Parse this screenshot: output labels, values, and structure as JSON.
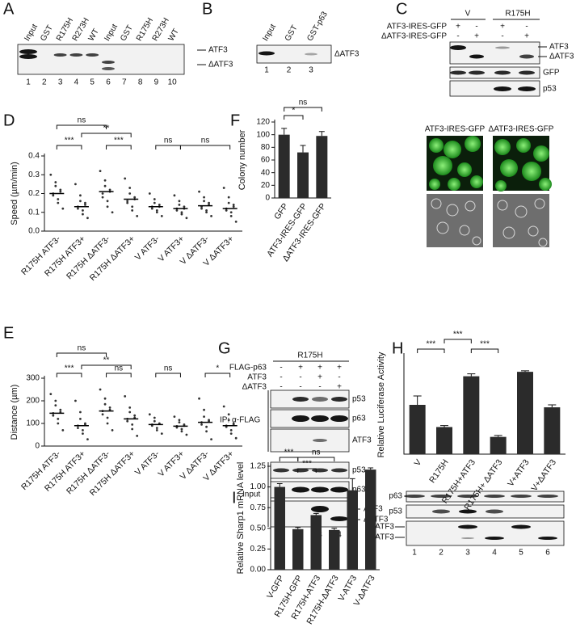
{
  "panels": {
    "A": {
      "letter": "A",
      "lanes": [
        "Input",
        "GST",
        "R175H",
        "R273H",
        "WT",
        "Input",
        "GST",
        "R175H",
        "R273H",
        "WT"
      ],
      "lane_numbers": [
        1,
        2,
        3,
        4,
        5,
        6,
        7,
        8,
        9,
        10
      ],
      "bands": [
        "ATF3",
        "ΔATF3"
      ]
    },
    "B": {
      "letter": "B",
      "lanes": [
        "Input",
        "GST",
        "GST-p63"
      ],
      "lane_numbers": [
        1,
        2,
        3
      ],
      "bands": [
        "ΔATF3"
      ]
    },
    "C": {
      "letter": "C",
      "groups": [
        "V",
        "R175H"
      ],
      "rows": [
        {
          "label": "ATF3-IRES-GFP",
          "signs": [
            "+",
            "-",
            "+",
            "-"
          ]
        },
        {
          "label": "ΔATF3-IRES-GFP",
          "signs": [
            "-",
            "+",
            "-",
            "+"
          ]
        }
      ],
      "bands": [
        "ATF3",
        "ΔATF3",
        "GFP",
        "p53"
      ]
    },
    "images": {
      "labels": [
        "ATF3-IRES-GFP",
        "ΔATF3-IRES-GFP"
      ]
    },
    "G": {
      "letter": "G",
      "group": "R175H",
      "rows": [
        {
          "label": "FLAG-p63",
          "signs": [
            "-",
            "+",
            "+",
            "+"
          ]
        },
        {
          "label": "ATF3",
          "signs": [
            "-",
            "-",
            "+",
            "-"
          ]
        },
        {
          "label": "ΔATF3",
          "signs": [
            "-",
            "-",
            "-",
            "+"
          ]
        }
      ],
      "ip_label": "IP: α-FLAG",
      "ip_bands": [
        "p53",
        "p63",
        "ATF3"
      ],
      "input_label": "Input",
      "input_bands": [
        "p53",
        "p63",
        "ATF3",
        "ΔATF3"
      ],
      "lane_numbers": [
        1,
        2,
        3,
        4
      ]
    },
    "H_blot": {
      "bands": [
        "p63",
        "p53",
        "ATF3",
        "ΔATF3"
      ],
      "lane_numbers": [
        1,
        2,
        3,
        4,
        5,
        6
      ]
    }
  },
  "chart_data": [
    {
      "type": "dotplot",
      "letter": "D",
      "ylabel": "Speed (µm/min)",
      "categories": [
        "R175H ATF3-",
        "R175H ATF3+",
        "R175H ΔATF3-",
        "R175H ΔATF3+",
        "V ATF3-",
        "V ATF3+",
        "V ΔATF3-",
        "V ΔATF3+"
      ],
      "groups": [
        [
          0.3,
          0.26,
          0.24,
          0.22,
          0.21,
          0.2,
          0.19,
          0.17,
          0.15,
          0.12
        ],
        [
          0.25,
          0.19,
          0.16,
          0.15,
          0.14,
          0.13,
          0.12,
          0.11,
          0.09,
          0.07
        ],
        [
          0.32,
          0.27,
          0.24,
          0.22,
          0.21,
          0.2,
          0.18,
          0.16,
          0.13,
          0.1
        ],
        [
          0.28,
          0.23,
          0.2,
          0.18,
          0.17,
          0.16,
          0.15,
          0.13,
          0.11,
          0.08
        ],
        [
          0.2,
          0.17,
          0.15,
          0.14,
          0.13,
          0.13,
          0.12,
          0.11,
          0.1,
          0.08
        ],
        [
          0.19,
          0.16,
          0.14,
          0.13,
          0.12,
          0.12,
          0.11,
          0.1,
          0.09,
          0.07
        ],
        [
          0.21,
          0.18,
          0.16,
          0.15,
          0.14,
          0.13,
          0.12,
          0.11,
          0.1,
          0.08
        ],
        [
          0.23,
          0.18,
          0.15,
          0.14,
          0.13,
          0.12,
          0.11,
          0.1,
          0.08,
          0.05
        ]
      ],
      "medians": [
        0.2,
        0.13,
        0.21,
        0.17,
        0.13,
        0.12,
        0.135,
        0.12
      ],
      "ylim": [
        0,
        0.4
      ],
      "yticks": [
        {
          "value": 0,
          "label": "0.0"
        },
        0.1,
        0.2,
        0.3,
        0.4
      ],
      "annotations": [
        "ns",
        "**",
        "***",
        "***",
        "ns",
        "ns"
      ],
      "color": "#333333"
    },
    {
      "type": "dotplot",
      "letter": "E",
      "ylabel": "Distance (µm)",
      "categories": [
        "R175H ATF3-",
        "R175H ATF3+",
        "R175H ΔATF3-",
        "R175H ΔATF3+",
        "V ATF3-",
        "V ATF3+",
        "V ΔATF3-",
        "V ΔATF3+"
      ],
      "groups": [
        [
          230,
          200,
          180,
          160,
          150,
          145,
          135,
          120,
          100,
          70
        ],
        [
          200,
          150,
          120,
          100,
          95,
          90,
          80,
          70,
          55,
          30
        ],
        [
          250,
          210,
          185,
          170,
          160,
          155,
          140,
          125,
          100,
          70
        ],
        [
          220,
          170,
          150,
          135,
          125,
          120,
          110,
          95,
          75,
          45
        ],
        [
          140,
          125,
          110,
          100,
          98,
          95,
          90,
          80,
          70,
          55
        ],
        [
          130,
          115,
          105,
          95,
          90,
          88,
          82,
          75,
          65,
          50
        ],
        [
          210,
          160,
          130,
          115,
          110,
          105,
          95,
          85,
          65,
          30
        ],
        [
          175,
          140,
          115,
          100,
          95,
          90,
          85,
          70,
          55,
          35
        ]
      ],
      "medians": [
        145,
        90,
        155,
        120,
        95,
        88,
        105,
        90
      ],
      "ylim": [
        0,
        300
      ],
      "yticks": [
        0,
        100,
        200,
        300
      ],
      "annotations": [
        "ns",
        "**",
        "***",
        "ns",
        "ns",
        "*"
      ],
      "color": "#333333"
    },
    {
      "type": "bar",
      "letter": "F",
      "ylabel": "Colony number",
      "categories": [
        "GFP",
        "ATF3-IRES-GFP",
        "ΔATF3-IRES-GFP"
      ],
      "values": [
        100,
        72,
        98
      ],
      "errors": [
        10,
        11,
        7
      ],
      "ylim": [
        0,
        120
      ],
      "yticks": [
        0,
        20,
        40,
        60,
        80,
        100,
        120
      ],
      "annotations": [
        "ns",
        "*"
      ],
      "color": "#2b2b2b"
    },
    {
      "type": "bar",
      "letter": "H",
      "ylabel": "Relative Luciferase Activity",
      "categories": [
        "V",
        "R175H",
        "R175H+ATF3",
        "R175H+ ΔATF3",
        "V+ATF3",
        "V+ΔATF3"
      ],
      "values": [
        1.0,
        0.55,
        1.58,
        0.35,
        1.67,
        0.95
      ],
      "errors": [
        0.18,
        0.03,
        0.05,
        0.03,
        0.02,
        0.05
      ],
      "ylim": [
        0,
        2
      ],
      "annotations": [
        "***",
        "***",
        "***"
      ],
      "color": "#2b2b2b"
    },
    {
      "type": "bar",
      "letter": "I",
      "ylabel": "Relative Sharp1 mRNA level",
      "categories": [
        "V-GFP",
        "R175H-GFP",
        "R175H-ATF3",
        "R175H-ΔATF3",
        "V-ATF3",
        "V-ΔATF3"
      ],
      "values": [
        1.0,
        0.49,
        0.66,
        0.48,
        0.96,
        1.21
      ],
      "errors": [
        0.04,
        0.02,
        0.02,
        0.02,
        0.14,
        0.02
      ],
      "ylim": [
        0,
        1.25
      ],
      "yticks": [
        {
          "value": 0,
          "label": "0.00"
        },
        {
          "value": 0.25,
          "label": "0.25"
        },
        {
          "value": 0.5,
          "label": "0.50"
        },
        {
          "value": 0.75,
          "label": "0.75"
        },
        {
          "value": 1,
          "label": "1.00"
        },
        {
          "value": 1.25,
          "label": "1.25"
        }
      ],
      "annotations": [
        "***",
        "***",
        "ns"
      ],
      "color": "#2b2b2b"
    }
  ]
}
